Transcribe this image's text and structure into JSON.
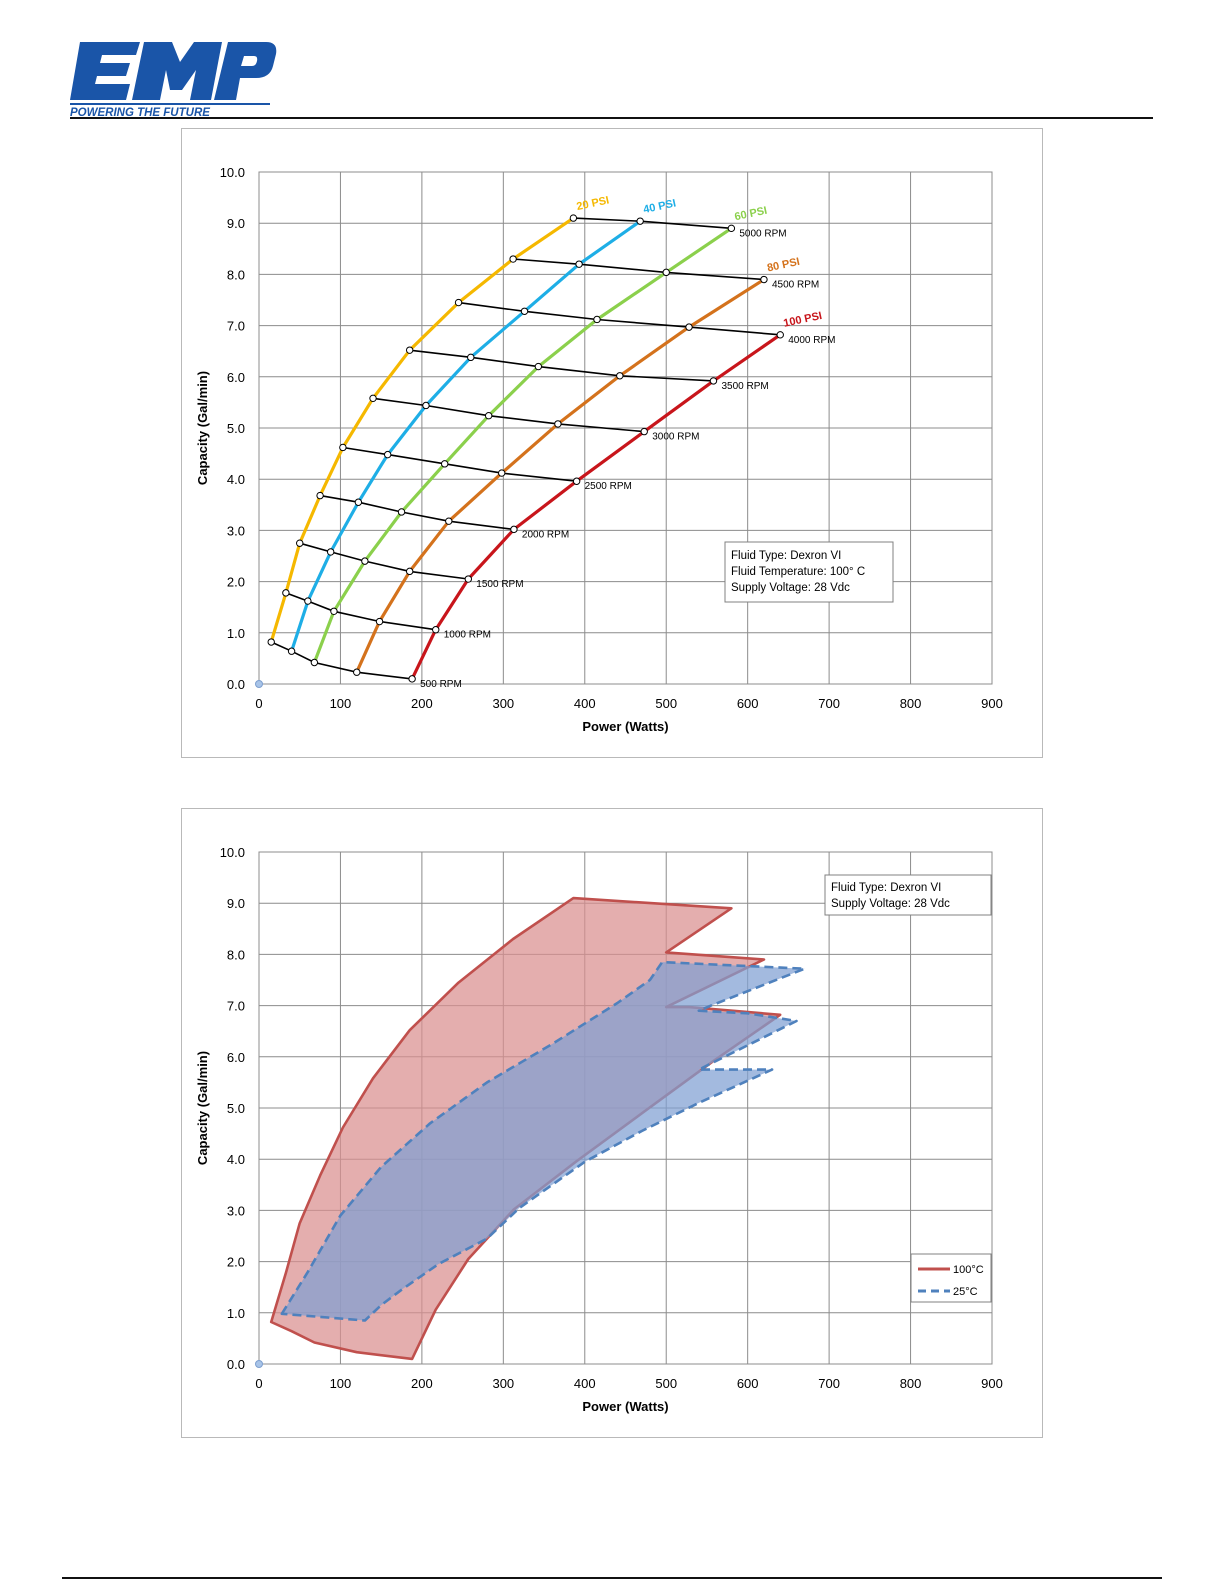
{
  "header": {
    "logo_text": "EMP",
    "tagline": "POWERING THE FUTURE",
    "brand_color": "#1a55a8"
  },
  "chart_data": [
    {
      "type": "line",
      "title": "",
      "xlabel": "Power (Watts)",
      "ylabel": "Capacity (Gal/min)",
      "xlim": [
        0,
        900
      ],
      "ylim": [
        0,
        10
      ],
      "x_ticks": [
        "0",
        "100",
        "200",
        "300",
        "400",
        "500",
        "600",
        "700",
        "800",
        "900"
      ],
      "y_ticks": [
        "0.0",
        "1.0",
        "2.0",
        "3.0",
        "4.0",
        "5.0",
        "6.0",
        "7.0",
        "8.0",
        "9.0",
        "10.0"
      ],
      "grid": true,
      "rpm_levels": [
        "500 RPM",
        "1000 RPM",
        "1500 RPM",
        "2000 RPM",
        "2500 RPM",
        "3000 RPM",
        "3500 RPM",
        "4000 RPM",
        "4500 RPM",
        "5000 RPM"
      ],
      "series": [
        {
          "name": "20 PSI",
          "color": "#f5b800",
          "points": [
            [
              15,
              0.82
            ],
            [
              33,
              1.78
            ],
            [
              50,
              2.75
            ],
            [
              75,
              3.68
            ],
            [
              103,
              4.62
            ],
            [
              140,
              5.58
            ],
            [
              185,
              6.52
            ],
            [
              245,
              7.45
            ],
            [
              312,
              8.3
            ],
            [
              386,
              9.1
            ]
          ]
        },
        {
          "name": "40 PSI",
          "color": "#1eaee6",
          "points": [
            [
              40,
              0.64
            ],
            [
              60,
              1.62
            ],
            [
              88,
              2.58
            ],
            [
              122,
              3.55
            ],
            [
              158,
              4.48
            ],
            [
              205,
              5.44
            ],
            [
              260,
              6.38
            ],
            [
              326,
              7.28
            ],
            [
              393,
              8.2
            ],
            [
              468,
              9.04
            ]
          ]
        },
        {
          "name": "60 PSI",
          "color": "#8bd04c",
          "points": [
            [
              68,
              0.42
            ],
            [
              92,
              1.42
            ],
            [
              130,
              2.4
            ],
            [
              175,
              3.36
            ],
            [
              228,
              4.3
            ],
            [
              282,
              5.24
            ],
            [
              343,
              6.2
            ],
            [
              415,
              7.12
            ],
            [
              500,
              8.04
            ],
            [
              580,
              8.9
            ]
          ]
        },
        {
          "name": "80 PSI",
          "color": "#d4721c",
          "points": [
            [
              120,
              0.23
            ],
            [
              148,
              1.22
            ],
            [
              185,
              2.2
            ],
            [
              233,
              3.18
            ],
            [
              298,
              4.12
            ],
            [
              367,
              5.08
            ],
            [
              443,
              6.02
            ],
            [
              528,
              6.97
            ],
            [
              620,
              7.9
            ]
          ]
        },
        {
          "name": "100 PSI",
          "color": "#c8151b",
          "points": [
            [
              188,
              0.1
            ],
            [
              217,
              1.06
            ],
            [
              257,
              2.05
            ],
            [
              313,
              3.02
            ],
            [
              390,
              3.96
            ],
            [
              473,
              4.93
            ],
            [
              558,
              5.92
            ],
            [
              640,
              6.82
            ]
          ]
        }
      ],
      "rpm_lines": [
        {
          "label": "500 RPM",
          "points": [
            [
              15,
              0.82
            ],
            [
              40,
              0.64
            ],
            [
              68,
              0.42
            ],
            [
              120,
              0.23
            ],
            [
              188,
              0.1
            ]
          ]
        },
        {
          "label": "1000 RPM",
          "points": [
            [
              33,
              1.78
            ],
            [
              60,
              1.62
            ],
            [
              92,
              1.42
            ],
            [
              148,
              1.22
            ],
            [
              217,
              1.06
            ]
          ]
        },
        {
          "label": "1500 RPM",
          "points": [
            [
              50,
              2.75
            ],
            [
              88,
              2.58
            ],
            [
              130,
              2.4
            ],
            [
              185,
              2.2
            ],
            [
              257,
              2.05
            ]
          ]
        },
        {
          "label": "2000 RPM",
          "points": [
            [
              75,
              3.68
            ],
            [
              122,
              3.55
            ],
            [
              175,
              3.36
            ],
            [
              233,
              3.18
            ],
            [
              313,
              3.02
            ]
          ]
        },
        {
          "label": "2500 RPM",
          "points": [
            [
              103,
              4.62
            ],
            [
              158,
              4.48
            ],
            [
              228,
              4.3
            ],
            [
              298,
              4.12
            ],
            [
              390,
              3.96
            ]
          ]
        },
        {
          "label": "3000 RPM",
          "points": [
            [
              140,
              5.58
            ],
            [
              205,
              5.44
            ],
            [
              282,
              5.24
            ],
            [
              367,
              5.08
            ],
            [
              473,
              4.93
            ]
          ]
        },
        {
          "label": "3500 RPM",
          "points": [
            [
              185,
              6.52
            ],
            [
              260,
              6.38
            ],
            [
              343,
              6.2
            ],
            [
              443,
              6.02
            ],
            [
              558,
              5.92
            ]
          ]
        },
        {
          "label": "4000 RPM",
          "points": [
            [
              245,
              7.45
            ],
            [
              326,
              7.28
            ],
            [
              415,
              7.12
            ],
            [
              528,
              6.97
            ],
            [
              640,
              6.82
            ]
          ]
        },
        {
          "label": "4500 RPM",
          "points": [
            [
              312,
              8.3
            ],
            [
              393,
              8.2
            ],
            [
              500,
              8.04
            ],
            [
              620,
              7.9
            ]
          ]
        },
        {
          "label": "5000 RPM",
          "points": [
            [
              386,
              9.1
            ],
            [
              468,
              9.04
            ],
            [
              580,
              8.9
            ]
          ]
        }
      ],
      "annotation": [
        "Fluid Type:  Dexron VI",
        "Fluid Temperature:  100° C",
        "Supply Voltage:  28 Vdc"
      ]
    },
    {
      "type": "area",
      "title": "",
      "xlabel": "Power (Watts)",
      "ylabel": "Capacity (Gal/min)",
      "xlim": [
        0,
        900
      ],
      "ylim": [
        0,
        10
      ],
      "x_ticks": [
        "0",
        "100",
        "200",
        "300",
        "400",
        "500",
        "600",
        "700",
        "800",
        "900"
      ],
      "y_ticks": [
        "0.0",
        "1.0",
        "2.0",
        "3.0",
        "4.0",
        "5.0",
        "6.0",
        "7.0",
        "8.0",
        "9.0",
        "10.0"
      ],
      "grid": true,
      "series": [
        {
          "name": "100°C",
          "color": "#c0504d",
          "fill": "#d98f8f",
          "line_style": "solid",
          "points": [
            [
              15,
              0.82
            ],
            [
              33,
              1.78
            ],
            [
              50,
              2.75
            ],
            [
              75,
              3.68
            ],
            [
              103,
              4.62
            ],
            [
              140,
              5.58
            ],
            [
              185,
              6.52
            ],
            [
              245,
              7.45
            ],
            [
              312,
              8.3
            ],
            [
              386,
              9.1
            ],
            [
              580,
              8.9
            ],
            [
              500,
              8.04
            ],
            [
              620,
              7.9
            ],
            [
              500,
              6.97
            ],
            [
              528,
              6.97
            ],
            [
              640,
              6.82
            ],
            [
              558,
              5.92
            ],
            [
              473,
              4.93
            ],
            [
              390,
              3.96
            ],
            [
              313,
              3.02
            ],
            [
              257,
              2.05
            ],
            [
              217,
              1.06
            ],
            [
              188,
              0.1
            ],
            [
              120,
              0.23
            ],
            [
              68,
              0.42
            ],
            [
              40,
              0.64
            ]
          ]
        },
        {
          "name": "25°C",
          "color": "#4f81bd",
          "fill": "#7f9fd3",
          "line_style": "dashed",
          "points": [
            [
              28,
              0.98
            ],
            [
              60,
              1.8
            ],
            [
              100,
              2.9
            ],
            [
              150,
              3.85
            ],
            [
              210,
              4.7
            ],
            [
              280,
              5.5
            ],
            [
              360,
              6.25
            ],
            [
              440,
              7.05
            ],
            [
              480,
              7.5
            ],
            [
              495,
              7.85
            ],
            [
              670,
              7.72
            ],
            [
              555,
              7.0
            ],
            [
              540,
              6.9
            ],
            [
              600,
              6.85
            ],
            [
              660,
              6.7
            ],
            [
              540,
              5.75
            ],
            [
              630,
              5.75
            ],
            [
              540,
              5.1
            ],
            [
              470,
              4.55
            ],
            [
              400,
              3.95
            ],
            [
              320,
              3.05
            ],
            [
              280,
              2.45
            ],
            [
              220,
              1.95
            ],
            [
              175,
              1.45
            ],
            [
              150,
              1.15
            ],
            [
              130,
              0.85
            ]
          ]
        }
      ],
      "legend": {
        "position": "bottom-right",
        "entries": [
          "100°C",
          "25°C"
        ]
      },
      "annotation": [
        "Fluid Type:  Dexron VI",
        "Supply Voltage:  28 Vdc"
      ]
    }
  ]
}
